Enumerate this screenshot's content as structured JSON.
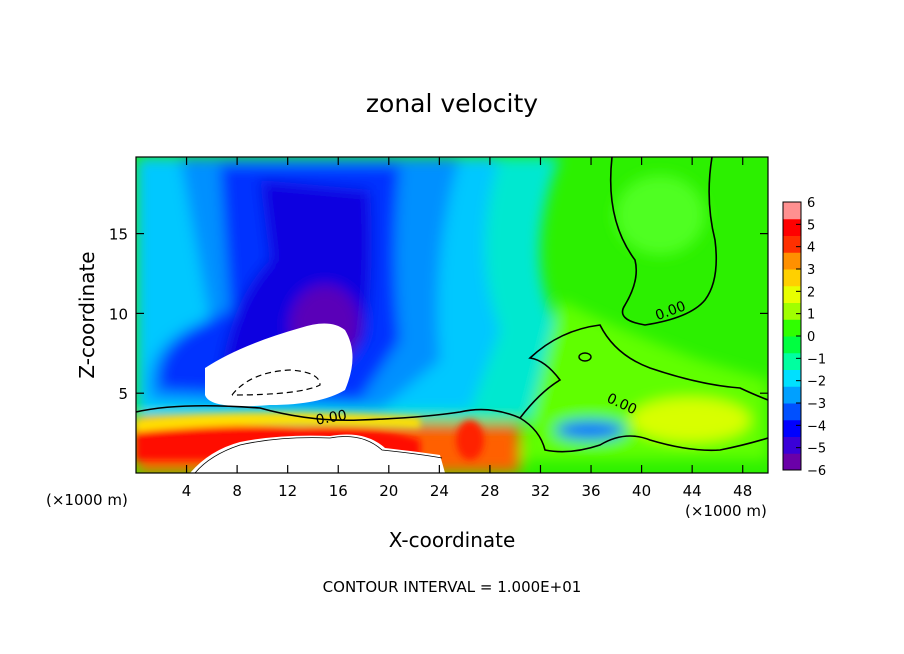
{
  "chart_data": {
    "type": "heatmap",
    "title": "zonal velocity",
    "xlabel": "X-coordinate",
    "ylabel": "Z-coordinate",
    "x_unit_note": "(×1000 m)",
    "x_unit_note_right": "(×1000 m)",
    "xlim": [
      0,
      50
    ],
    "ylim": [
      0,
      19.8
    ],
    "xticks": [
      "4",
      "8",
      "12",
      "16",
      "20",
      "24",
      "28",
      "32",
      "36",
      "40",
      "44",
      "48"
    ],
    "yticks": [
      "5",
      "10",
      "15"
    ],
    "contour_labels": [
      "0.00",
      "0.00",
      "0.00"
    ],
    "footer": "CONTOUR INTERVAL = 1.000E+01",
    "colorbar": {
      "ticks": [
        "6",
        "5",
        "4",
        "3",
        "2",
        "1",
        "0",
        "−1",
        "−2",
        "−3",
        "−4",
        "−5",
        "−6"
      ],
      "range": [
        -6,
        6
      ],
      "colors": [
        "#6a00a8",
        "#3a00d8",
        "#0000ff",
        "#0050ff",
        "#00a0ff",
        "#00e0ff",
        "#00ffa0",
        "#00ff40",
        "#30ff00",
        "#a0ff00",
        "#e8ff00",
        "#ffd000",
        "#ff9000",
        "#ff3000",
        "#ff0000",
        "#ff9090"
      ]
    },
    "field_features": [
      {
        "x": 14,
        "z": 14,
        "value": -5.5
      },
      {
        "x": 15,
        "z": 9.5,
        "value": -6
      },
      {
        "x": 6,
        "z": 8,
        "value": -4.5
      },
      {
        "x": 20,
        "z": 16,
        "value": -3.5
      },
      {
        "x": 26,
        "z": 10,
        "value": -2
      },
      {
        "x": 41,
        "z": 16,
        "value": 0.5
      },
      {
        "x": 46,
        "z": 12,
        "value": -0.5
      },
      {
        "x": 36,
        "z": 3,
        "value": -3
      },
      {
        "x": 14,
        "z": 2.5,
        "value": 5
      },
      {
        "x": 26,
        "z": 2,
        "value": 4
      }
    ],
    "masked_regions": [
      "terrain-top",
      "terrain-bottom"
    ],
    "grid": false
  }
}
